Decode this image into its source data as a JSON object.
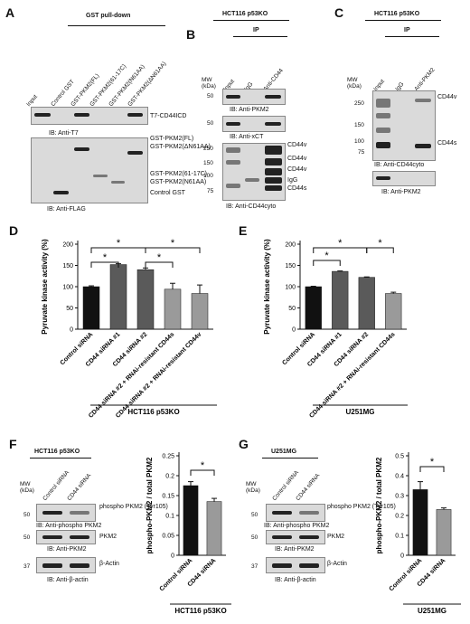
{
  "panelA": {
    "letter": "A",
    "header": "GST pull-down",
    "lanes": [
      "Input",
      "Control GST",
      "GST-PKM2(FL)",
      "GST-PKM2(61-17C)",
      "GST-PKM2(N61AA)",
      "GST-PKM2(ΔN61AA)"
    ],
    "band_top": "T7-CD44ICD",
    "ib_top": "IB: Anti-T7",
    "bands_bottom": [
      "GST-PKM2(FL)",
      "GST-PKM2(ΔN61AA)",
      "GST-PKM2(61-17C)",
      "GST-PKM2(N61AA)",
      "Control GST"
    ],
    "ib_bottom": "IB: Anti-FLAG"
  },
  "panelB": {
    "letter": "B",
    "cell": "HCT116 p53KO",
    "ip": "IP",
    "mw": "MW\n(kDa)",
    "lanes": [
      "Input",
      "IgG",
      "Anti-CD44"
    ],
    "mw1": "50",
    "ib1": "IB: Anti-PKM2",
    "mw2": "50",
    "ib2": "IB: Anti-xCT",
    "mw3": [
      "250",
      "150",
      "100",
      "75"
    ],
    "bands3": [
      "CD44v",
      "CD44v",
      "CD44v",
      "IgG",
      "CD44s"
    ],
    "ib3": "IB: Anti-CD44cyto"
  },
  "panelC": {
    "letter": "C",
    "cell": "HCT116 p53KO",
    "ip": "IP",
    "mw": "MW\n(kDa)",
    "lanes": [
      "Input",
      "IgG",
      "Anti-PKM2"
    ],
    "mw1": [
      "250",
      "150",
      "100",
      "75"
    ],
    "bands1": [
      "CD44v",
      "CD44s"
    ],
    "ib1": "IB: Anti-CD44cyto",
    "ib2": "IB: Anti-PKM2"
  },
  "panelD": {
    "letter": "D",
    "chart_data": {
      "type": "bar",
      "categories": [
        "Control siRNA",
        "CD44 siRNA #1",
        "CD44 siRNA #2",
        "CD44 siRNA #2 + RNAi-resistant CD44s",
        "CD44 siRNA #2 + RNAi-resistant CD44v"
      ],
      "values": [
        100,
        152,
        140,
        94,
        84
      ],
      "errors": [
        2,
        2,
        4,
        14,
        20
      ],
      "ylabel": "Pyruvate kinase activity (%)",
      "ylim": [
        0,
        200
      ],
      "yticks": [
        "0",
        "50",
        "100",
        "150",
        "200"
      ],
      "colors": [
        "#111111",
        "#5a5a5a",
        "#5a5a5a",
        "#9a9a9a",
        "#9a9a9a"
      ],
      "significance": "*",
      "footer": "HCT116 p53KO"
    }
  },
  "panelE": {
    "letter": "E",
    "chart_data": {
      "type": "bar",
      "categories": [
        "Control siRNA",
        "CD44 siRNA #1",
        "CD44 siRNA #2",
        "CD44 siRNA #2 + RNAi-resistant CD44s"
      ],
      "values": [
        100,
        136,
        122,
        84
      ],
      "errors": [
        1,
        1,
        1,
        3
      ],
      "ylabel": "Pyruvate kinase activity (%)",
      "ylim": [
        0,
        200
      ],
      "yticks": [
        "0",
        "50",
        "100",
        "150",
        "200"
      ],
      "colors": [
        "#111111",
        "#5a5a5a",
        "#5a5a5a",
        "#9a9a9a"
      ],
      "significance": "*",
      "footer": "U251MG"
    }
  },
  "panelF": {
    "letter": "F",
    "cell": "HCT116  p53KO",
    "mw": "MW\n(kDa)",
    "lanes": [
      "Control siRNA",
      "CD44 siRNA"
    ],
    "mw_vals": [
      "50",
      "50",
      "37"
    ],
    "band1": "phospho PKM2 (Tyr105)",
    "ib1": "IB: Anti-phospho PKM2",
    "band2": "PKM2",
    "ib2": "IB: Anti-PKM2",
    "band3": "β-Actin",
    "ib3": "IB: Anti-β-actin",
    "chart_data": {
      "type": "bar",
      "categories": [
        "Control siRNA",
        "CD44 siRNA"
      ],
      "values": [
        0.175,
        0.135
      ],
      "errors": [
        0.01,
        0.008
      ],
      "ylabel": "phospho-PKM2 / total PKM2",
      "ylim": [
        0,
        0.25
      ],
      "yticks": [
        "0",
        "0.05",
        "0.1",
        "0.15",
        "0.2",
        "0.25"
      ],
      "colors": [
        "#111111",
        "#9a9a9a"
      ],
      "significance": "*",
      "footer": "HCT116  p53KO"
    }
  },
  "panelG": {
    "letter": "G",
    "cell": "U251MG",
    "mw": "MW\n(kDa)",
    "lanes": [
      "Control siRNA",
      "CD44 siRNA"
    ],
    "mw_vals": [
      "50",
      "50",
      "37"
    ],
    "band1": "phospho PKM2 (Tyr105)",
    "ib1": "IB: Anti-phospho PKM2",
    "band2": "PKM2",
    "ib2": "IB: Anti-PKM2",
    "band3": "β-Actin",
    "ib3": "IB: Anti-β-actin",
    "chart_data": {
      "type": "bar",
      "categories": [
        "Control siRNA",
        "CD44 siRNA"
      ],
      "values": [
        0.33,
        0.23
      ],
      "errors": [
        0.04,
        0.008
      ],
      "ylabel": "phospho-PKM2 / total PKM2",
      "ylim": [
        0,
        0.5
      ],
      "yticks": [
        "0",
        "0.1",
        "0.2",
        "0.3",
        "0.4",
        "0.5"
      ],
      "colors": [
        "#111111",
        "#9a9a9a"
      ],
      "significance": "*",
      "footer": "U251MG"
    }
  }
}
